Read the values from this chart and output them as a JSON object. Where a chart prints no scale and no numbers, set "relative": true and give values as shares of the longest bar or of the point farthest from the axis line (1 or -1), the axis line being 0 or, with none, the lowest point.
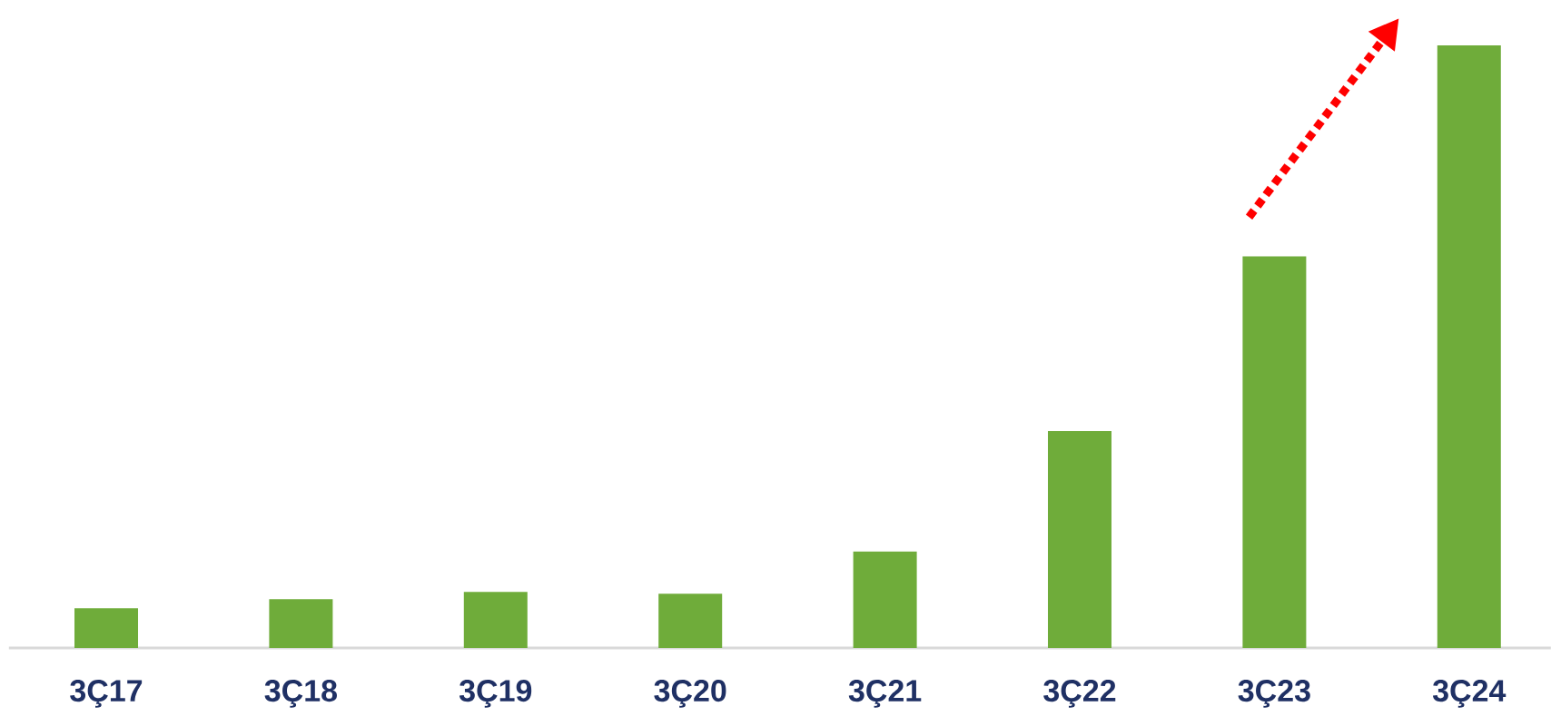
{
  "chart_data": {
    "type": "bar",
    "relative": true,
    "categories": [
      "3Ç17",
      "3Ç18",
      "3Ç19",
      "3Ç20",
      "3Ç21",
      "3Ç22",
      "3Ç23",
      "3Ç24"
    ],
    "values": [
      0.066,
      0.081,
      0.093,
      0.09,
      0.16,
      0.36,
      0.65,
      1
    ],
    "color": "#6fac3a"
  }
}
